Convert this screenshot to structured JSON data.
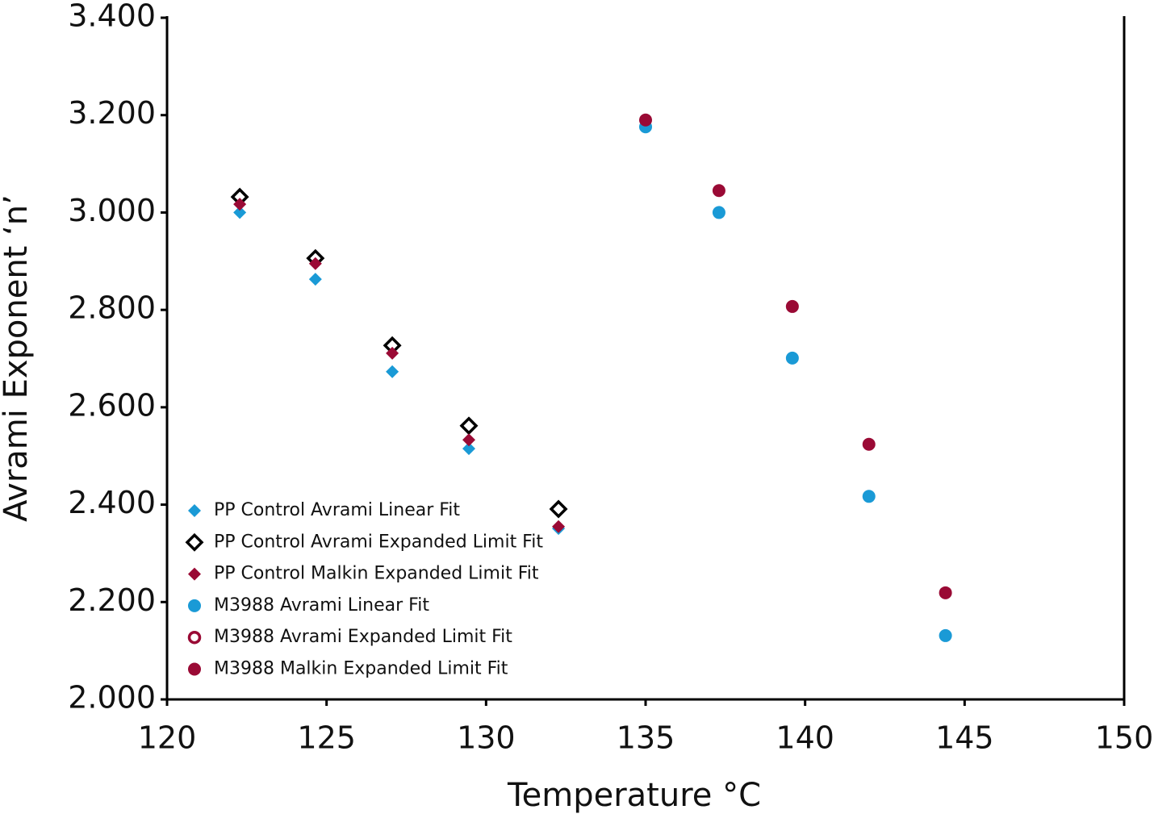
{
  "chart_data": {
    "type": "scatter",
    "x_label": "Temperature °C",
    "y_label": "Avrami Exponent ‘n’",
    "xlim": [
      120,
      150
    ],
    "xticks": [
      120,
      125,
      130,
      135,
      140,
      145,
      150
    ],
    "ylim": [
      2.0,
      3.4
    ],
    "yticks": [
      {
        "value": 2.0,
        "label": "2.000"
      },
      {
        "value": 2.2,
        "label": "2.200"
      },
      {
        "value": 2.4,
        "label": "2.400"
      },
      {
        "value": 2.6,
        "label": "2.600"
      },
      {
        "value": 2.8,
        "label": "2.800"
      },
      {
        "value": 3.0,
        "label": "3.000"
      },
      {
        "value": 3.2,
        "label": "3.200"
      },
      {
        "value": 3.4,
        "label": "3.400"
      }
    ],
    "grid": false,
    "legend": "lower left",
    "series": [
      {
        "name": "PP Control Avrami Linear Fit",
        "color": "#1a9ad6",
        "marker": "diamond",
        "filled": true,
        "x": [
          122.28,
          124.65,
          127.06,
          129.46,
          132.27
        ],
        "values": [
          3.0,
          2.863,
          2.673,
          2.515,
          2.351
        ]
      },
      {
        "name": "PP Control Avrami Expanded Limit Fit",
        "color": "#000000",
        "marker": "diamond",
        "filled": false,
        "x": [
          122.28,
          124.65,
          127.06,
          129.46,
          132.27
        ],
        "values": [
          3.032,
          2.906,
          2.727,
          2.562,
          2.391
        ]
      },
      {
        "name": "PP Control Malkin Expanded Limit Fit",
        "color": "#9a0a35",
        "marker": "diamond",
        "filled": true,
        "x": [
          122.28,
          124.65,
          127.06,
          129.46,
          132.27
        ],
        "values": [
          3.017,
          2.895,
          2.711,
          2.533,
          2.355
        ]
      },
      {
        "name": "M3988 Avrami Linear Fit",
        "color": "#1a9ad6",
        "marker": "circle",
        "filled": true,
        "x": [
          135.0,
          137.3,
          139.6,
          142.0,
          144.4
        ],
        "values": [
          3.176,
          3.0,
          2.701,
          2.417,
          2.131
        ]
      },
      {
        "name": "M3988 Avrami Expanded Limit Fit",
        "color": "#9a0a35",
        "marker": "circle",
        "filled": false,
        "x": [],
        "values": []
      },
      {
        "name": "M3988 Malkin Expanded Limit Fit",
        "color": "#9a0a35",
        "marker": "circle",
        "filled": true,
        "x": [
          135.0,
          137.3,
          139.6,
          142.0,
          144.4
        ],
        "values": [
          3.19,
          3.045,
          2.807,
          2.524,
          2.219
        ]
      }
    ]
  }
}
